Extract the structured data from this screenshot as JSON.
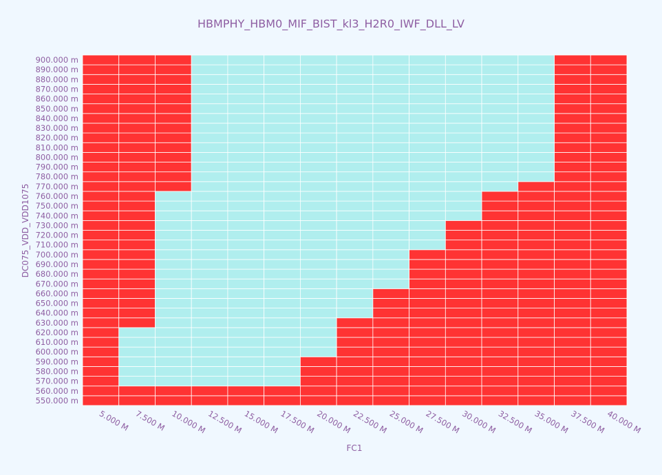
{
  "chart_data": {
    "type": "heatmap",
    "title": "HBMPHY_HBM0_MIF_BIST_kl3_H2R0_IWF_DLL_LV",
    "xlabel": "FC1",
    "ylabel": "DC075_VDD_VDD1075",
    "x_tick_labels": [
      "5.000 M",
      "7.500 M",
      "10.000 M",
      "12.500 M",
      "15.000 M",
      "17.500 M",
      "20.000 M",
      "22.500 M",
      "25.000 M",
      "27.500 M",
      "30.000 M",
      "32.500 M",
      "35.000 M",
      "37.500 M",
      "40.000 M"
    ],
    "y_tick_labels": [
      "550.000 m",
      "560.000 m",
      "570.000 m",
      "580.000 m",
      "590.000 m",
      "600.000 m",
      "610.000 m",
      "620.000 m",
      "630.000 m",
      "640.000 m",
      "650.000 m",
      "660.000 m",
      "670.000 m",
      "680.000 m",
      "690.000 m",
      "700.000 m",
      "710.000 m",
      "720.000 m",
      "730.000 m",
      "740.000 m",
      "750.000 m",
      "760.000 m",
      "770.000 m",
      "780.000 m",
      "790.000 m",
      "800.000 m",
      "810.000 m",
      "820.000 m",
      "830.000 m",
      "840.000 m",
      "850.000 m",
      "860.000 m",
      "870.000 m",
      "880.000 m",
      "890.000 m",
      "900.000 m"
    ],
    "x_values_mhz": [
      5.0,
      7.5,
      10.0,
      12.5,
      15.0,
      17.5,
      20.0,
      22.5,
      25.0,
      27.5,
      30.0,
      32.5,
      35.0,
      37.5,
      40.0
    ],
    "y_values_mv": [
      550,
      560,
      570,
      580,
      590,
      600,
      610,
      620,
      630,
      640,
      650,
      660,
      670,
      680,
      690,
      700,
      710,
      720,
      730,
      740,
      750,
      760,
      770,
      780,
      790,
      800,
      810,
      820,
      830,
      840,
      850,
      860,
      870,
      880,
      890,
      900
    ],
    "pass_regions_by_x": [
      {
        "x": "5.000 M",
        "pass_min_mv": null,
        "pass_max_mv": null
      },
      {
        "x": "7.500 M",
        "pass_min_mv": 570,
        "pass_max_mv": 620
      },
      {
        "x": "10.000 M",
        "pass_min_mv": 570,
        "pass_max_mv": 760
      },
      {
        "x": "12.500 M",
        "pass_min_mv": 570,
        "pass_max_mv": 900
      },
      {
        "x": "15.000 M",
        "pass_min_mv": 570,
        "pass_max_mv": 900
      },
      {
        "x": "17.500 M",
        "pass_min_mv": 570,
        "pass_max_mv": 900
      },
      {
        "x": "20.000 M",
        "pass_min_mv": 600,
        "pass_max_mv": 900
      },
      {
        "x": "22.500 M",
        "pass_min_mv": 640,
        "pass_max_mv": 900
      },
      {
        "x": "25.000 M",
        "pass_min_mv": 670,
        "pass_max_mv": 900
      },
      {
        "x": "27.500 M",
        "pass_min_mv": 710,
        "pass_max_mv": 900
      },
      {
        "x": "30.000 M",
        "pass_min_mv": 740,
        "pass_max_mv": 900
      },
      {
        "x": "32.500 M",
        "pass_min_mv": 770,
        "pass_max_mv": 900
      },
      {
        "x": "35.000 M",
        "pass_min_mv": 780,
        "pass_max_mv": 900
      },
      {
        "x": "37.500 M",
        "pass_min_mv": null,
        "pass_max_mv": null
      },
      {
        "x": "40.000 M",
        "pass_min_mv": null,
        "pass_max_mv": null
      }
    ],
    "colors": {
      "pass": "#b0eeee",
      "fail": "#ff3333",
      "grid": "#ffffff",
      "text": "#8e5ea2",
      "background": "#f0f8ff"
    }
  }
}
